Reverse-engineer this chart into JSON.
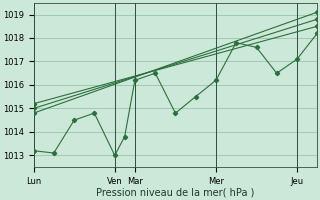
{
  "background_color": "#cce8d8",
  "grid_color": "#99c4ad",
  "line_color": "#2d6e3e",
  "title": "Pression niveau de la mer( hPa )",
  "ylim": [
    1012.5,
    1019.5
  ],
  "yticks": [
    1013,
    1014,
    1015,
    1016,
    1017,
    1018,
    1019
  ],
  "day_positions": [
    0.0,
    0.286,
    0.357,
    0.643,
    0.929
  ],
  "day_labels": [
    "Lun",
    "Ven",
    "Mar",
    "Mer",
    "Jeu"
  ],
  "xlim": [
    0.0,
    1.0
  ],
  "series": [
    {
      "x": [
        0.0,
        0.071,
        0.143,
        0.214,
        0.286,
        0.321,
        0.357,
        0.429,
        0.5,
        0.571,
        0.643,
        0.714,
        0.786,
        0.857,
        0.929,
        1.0
      ],
      "y": [
        1013.2,
        1013.1,
        1014.5,
        1014.8,
        1013.0,
        1013.8,
        1016.2,
        1016.5,
        1014.8,
        1015.5,
        1016.2,
        1017.8,
        1017.6,
        1016.5,
        1017.1,
        1018.2
      ]
    },
    {
      "x": [
        0.0,
        1.0
      ],
      "y": [
        1014.8,
        1019.1
      ]
    },
    {
      "x": [
        0.0,
        1.0
      ],
      "y": [
        1015.0,
        1018.8
      ]
    },
    {
      "x": [
        0.0,
        1.0
      ],
      "y": [
        1015.2,
        1018.5
      ]
    }
  ]
}
